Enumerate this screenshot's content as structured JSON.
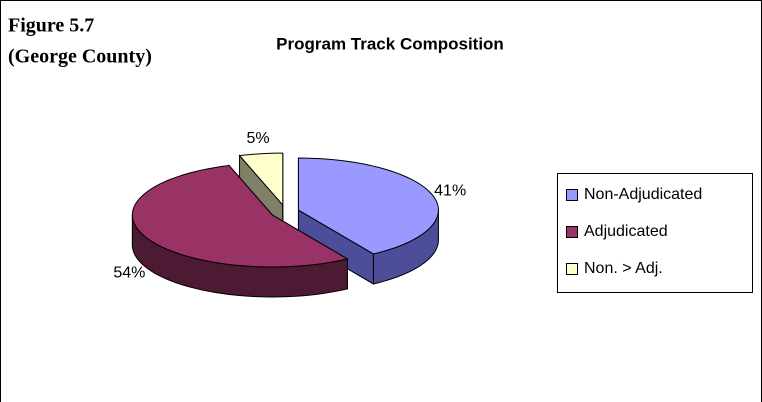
{
  "chart_data": {
    "type": "pie",
    "figure_label": "Figure 5.7",
    "figure_sublabel": "(George County)",
    "title": "Program Track Composition",
    "categories": [
      "Non-Adjudicated",
      "Adjudicated",
      "Non. > Adj."
    ],
    "values": [
      41,
      54,
      5
    ],
    "value_labels": [
      "41%",
      "54%",
      "5%"
    ],
    "colors": [
      "#9999ff",
      "#993366",
      "#ffffcc"
    ],
    "side_colors": [
      "#4d4d99",
      "#4d1a33",
      "#808066"
    ],
    "legend": "right"
  }
}
